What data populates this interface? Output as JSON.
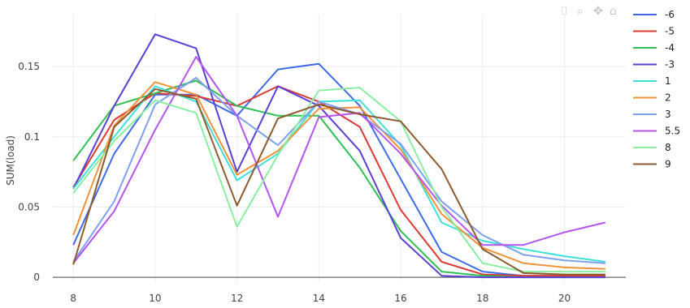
{
  "chart_data": {
    "type": "line",
    "title": "",
    "xlabel": "",
    "ylabel": "SUM(load)",
    "x": [
      8,
      9,
      10,
      11,
      12,
      13,
      14,
      15,
      16,
      17,
      18,
      19,
      20,
      21
    ],
    "xlim": [
      7.5,
      21.5
    ],
    "ylim": [
      -0.004,
      0.187
    ],
    "xticks": [
      8,
      10,
      12,
      14,
      16,
      18,
      20
    ],
    "yticks": [
      0,
      0.05,
      0.1,
      0.15
    ],
    "ytick_labels": [
      "0",
      "0.05",
      "0.1",
      "0.15"
    ],
    "grid": true,
    "legend_position": "top-right",
    "series": [
      {
        "name": "-6",
        "color": "#3d6ae8",
        "values": [
          0.023,
          0.088,
          0.13,
          0.13,
          0.115,
          0.148,
          0.152,
          0.122,
          0.07,
          0.018,
          0.004,
          0.001,
          0.001,
          0.001
        ]
      },
      {
        "name": "-5",
        "color": "#dd3a33",
        "values": [
          0.064,
          0.112,
          0.131,
          0.129,
          0.122,
          0.136,
          0.125,
          0.107,
          0.048,
          0.011,
          0.002,
          0.001,
          0.001,
          0.001
        ]
      },
      {
        "name": "-4",
        "color": "#2fbf55",
        "values": [
          0.083,
          0.122,
          0.131,
          0.14,
          0.122,
          0.115,
          0.115,
          0.078,
          0.033,
          0.004,
          0.001,
          0.0,
          0.0,
          0.0
        ]
      },
      {
        "name": "-3",
        "color": "#5a3fd6",
        "values": [
          0.063,
          0.122,
          0.173,
          0.163,
          0.075,
          0.136,
          0.122,
          0.09,
          0.028,
          0.001,
          0.0,
          0.0,
          0.0,
          0.0
        ]
      },
      {
        "name": "1",
        "color": "#3fe0d8",
        "values": [
          0.063,
          0.1,
          0.136,
          0.125,
          0.069,
          0.088,
          0.125,
          0.126,
          0.094,
          0.039,
          0.026,
          0.02,
          0.015,
          0.011
        ]
      },
      {
        "name": "2",
        "color": "#f0923a",
        "values": [
          0.03,
          0.108,
          0.139,
          0.13,
          0.073,
          0.09,
          0.12,
          0.121,
          0.091,
          0.045,
          0.021,
          0.01,
          0.007,
          0.006
        ]
      },
      {
        "name": "3",
        "color": "#7f9ff0",
        "values": [
          0.011,
          0.054,
          0.123,
          0.142,
          0.115,
          0.094,
          0.125,
          0.116,
          0.095,
          0.054,
          0.03,
          0.016,
          0.012,
          0.01
        ]
      },
      {
        "name": "5.5",
        "color": "#b455f0",
        "values": [
          0.01,
          0.047,
          0.105,
          0.157,
          0.115,
          0.043,
          0.114,
          0.117,
          0.088,
          0.051,
          0.023,
          0.023,
          0.032,
          0.039
        ]
      },
      {
        "name": "8",
        "color": "#8aeea0",
        "values": [
          0.06,
          0.097,
          0.126,
          0.117,
          0.036,
          0.087,
          0.133,
          0.135,
          0.111,
          0.05,
          0.01,
          0.004,
          0.004,
          0.004
        ]
      },
      {
        "name": "9",
        "color": "#8e5a2d",
        "values": [
          0.009,
          0.107,
          0.134,
          0.127,
          0.051,
          0.113,
          0.123,
          0.116,
          0.111,
          0.077,
          0.02,
          0.003,
          0.002,
          0.002
        ]
      }
    ]
  },
  "toolbar": {
    "icons": [
      "camera-icon",
      "zoom-icon",
      "pan-icon",
      "home-icon"
    ]
  }
}
